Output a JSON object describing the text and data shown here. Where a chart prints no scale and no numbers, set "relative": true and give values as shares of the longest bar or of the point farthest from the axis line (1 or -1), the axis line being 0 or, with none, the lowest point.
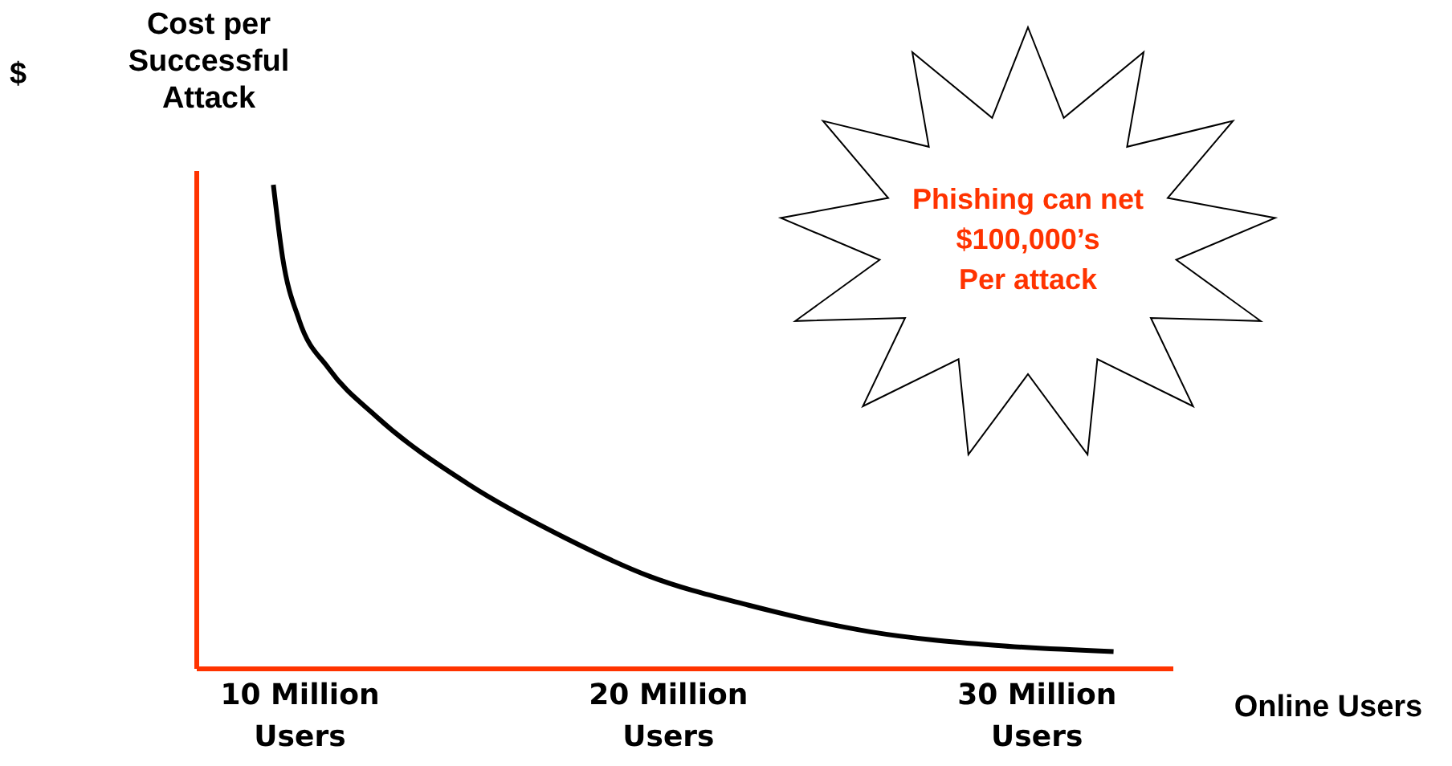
{
  "chart_data": {
    "type": "line",
    "relative": true,
    "ylabel": "Cost per Successful Attack",
    "xlabel": "Online Users",
    "annotations": [
      "$",
      "Phishing can net\n$100,000’s\nPer attack"
    ],
    "xlim": [
      7.2,
      33.7
    ],
    "xticks": [
      {
        "value": 10,
        "label": "10 Million Users"
      },
      {
        "value": 20,
        "label": "20 Million Users"
      },
      {
        "value": 30,
        "label": "30 Million Users"
      }
    ],
    "x": [
      9.3,
      9.55,
      10,
      10.8,
      12.1,
      14.6,
      17.2,
      19.5,
      22.2,
      25.5,
      28.9,
      32.1
    ],
    "series": [
      {
        "color": "#000000",
        "values": [
          1.0,
          0.85,
          0.72,
          0.62,
          0.52,
          0.38,
          0.27,
          0.19,
          0.13,
          0.075,
          0.047,
          0.034
        ]
      }
    ],
    "marker": "none",
    "line_style": "solid",
    "grid": false
  }
}
